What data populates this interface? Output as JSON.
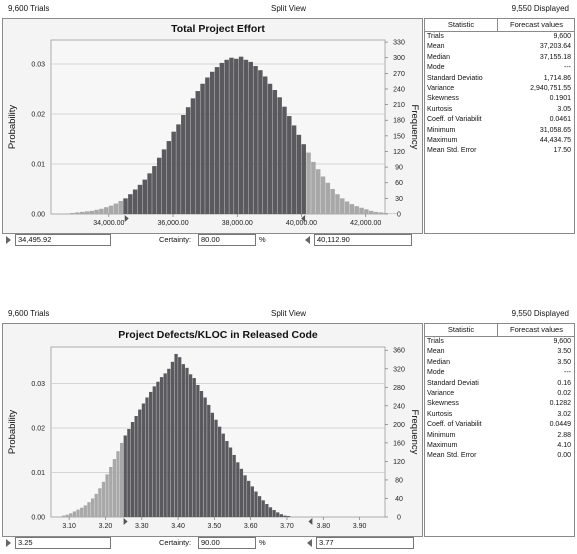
{
  "panels": [
    {
      "header": {
        "trials": "9,600 Trials",
        "view": "Split View",
        "displayed": "9,550 Displayed"
      },
      "chart_data": {
        "type": "bar",
        "title": "Total Project Effort",
        "ylabel": "Probability",
        "y2label": "Frequency",
        "x_range": [
          32200,
          42600
        ],
        "x_ticks": [
          34000,
          36000,
          38000,
          40000,
          42000
        ],
        "x_tick_labels": [
          "34,000.00",
          "36,000.00",
          "38,000.00",
          "40,000.00",
          "42,000.00"
        ],
        "y_ticks": [
          0,
          0.01,
          0.02,
          0.03
        ],
        "y_tick_labels": [
          "0.00",
          "0.01",
          "0.02",
          "0.03"
        ],
        "ylim": [
          0,
          0.0348
        ],
        "y2_ticks": [
          0,
          30,
          60,
          90,
          120,
          150,
          180,
          210,
          240,
          270,
          300,
          330
        ],
        "y2lim": [
          0,
          334
        ],
        "bin_start": 32500,
        "bin_width": 150,
        "lower_cut": 34495.92,
        "upper_cut": 40112.9,
        "frequencies": [
          1,
          1,
          2,
          3,
          4,
          5,
          6,
          8,
          10,
          13,
          16,
          20,
          25,
          30,
          38,
          47,
          56,
          66,
          78,
          92,
          108,
          124,
          140,
          158,
          172,
          190,
          205,
          222,
          236,
          250,
          262,
          273,
          282,
          290,
          296,
          300,
          298,
          302,
          296,
          292,
          284,
          276,
          264,
          250,
          238,
          224,
          206,
          188,
          170,
          152,
          134,
          118,
          100,
          86,
          72,
          60,
          48,
          38,
          30,
          24,
          19,
          15,
          12,
          9,
          6,
          4,
          3,
          2,
          1,
          1
        ]
      },
      "stats": {
        "col_statistic": "Statistic",
        "col_values": "Forecast values",
        "rows": [
          {
            "k": "Trials",
            "v": "9,600"
          },
          {
            "k": "Mean",
            "v": "37,203.64"
          },
          {
            "k": "Median",
            "v": "37,155.18"
          },
          {
            "k": "Mode",
            "v": "---"
          },
          {
            "k": "Standard Deviatio",
            "v": "1,714.86"
          },
          {
            "k": "Variance",
            "v": "2,940,751.55"
          },
          {
            "k": "Skewness",
            "v": "0.1901"
          },
          {
            "k": "Kurtosis",
            "v": "3.05"
          },
          {
            "k": "Coeff. of Variabilit",
            "v": "0.0461"
          },
          {
            "k": "Minimum",
            "v": "31,058.65"
          },
          {
            "k": "Maximum",
            "v": "44,434.75"
          },
          {
            "k": "Mean Std. Error",
            "v": "17.50"
          }
        ]
      },
      "controls": {
        "lower_value": "34,495.92",
        "certainty_label": "Certainty:",
        "certainty_value": "80.00",
        "percent": "%",
        "upper_value": "40,112.90"
      }
    },
    {
      "header": {
        "trials": "9,600 Trials",
        "view": "Split View",
        "displayed": "9,550 Displayed"
      },
      "chart_data": {
        "type": "bar",
        "title": "Project Defects/KLOC in Released Code",
        "ylabel": "Probability",
        "y2label": "Frequency",
        "x_range": [
          3.05,
          3.97
        ],
        "x_ticks": [
          3.1,
          3.2,
          3.3,
          3.4,
          3.5,
          3.6,
          3.7,
          3.8,
          3.9
        ],
        "x_tick_labels": [
          "3.10",
          "3.20",
          "3.30",
          "3.40",
          "3.50",
          "3.60",
          "3.70",
          "3.80",
          "3.90"
        ],
        "y_ticks": [
          0,
          0.01,
          0.02,
          0.03
        ],
        "y_tick_labels": [
          "0.00",
          "0.01",
          "0.02",
          "0.03"
        ],
        "ylim": [
          0,
          0.0382
        ],
        "y2_ticks": [
          0,
          40,
          80,
          120,
          160,
          200,
          240,
          280,
          320,
          360
        ],
        "y2lim": [
          0,
          367
        ],
        "bin_start": 3.08,
        "bin_width": 0.01,
        "lower_cut": 3.25,
        "upper_cut": 3.77,
        "frequencies": [
          3,
          5,
          8,
          12,
          16,
          20,
          25,
          32,
          40,
          50,
          62,
          76,
          92,
          108,
          125,
          142,
          160,
          176,
          190,
          205,
          218,
          232,
          245,
          258,
          270,
          282,
          292,
          302,
          310,
          320,
          335,
          352,
          345,
          330,
          322,
          308,
          300,
          285,
          272,
          258,
          242,
          225,
          210,
          195,
          180,
          164,
          150,
          134,
          118,
          104,
          90,
          78,
          66,
          55,
          45,
          36,
          28,
          21,
          15,
          10,
          6,
          3,
          2
        ]
      },
      "stats": {
        "col_statistic": "Statistic",
        "col_values": "Forecast values",
        "rows": [
          {
            "k": "Trials",
            "v": "9,600"
          },
          {
            "k": "Mean",
            "v": "3.50"
          },
          {
            "k": "Median",
            "v": "3.50"
          },
          {
            "k": "Mode",
            "v": "---"
          },
          {
            "k": "Standard Deviati",
            "v": "0.16"
          },
          {
            "k": "Variance",
            "v": "0.02"
          },
          {
            "k": "Skewness",
            "v": "0.1282"
          },
          {
            "k": "Kurtosis",
            "v": "3.02"
          },
          {
            "k": "Coeff. of Variabilit",
            "v": "0.0449"
          },
          {
            "k": "Minimum",
            "v": "2.88"
          },
          {
            "k": "Maximum",
            "v": "4.10"
          },
          {
            "k": "Mean Std. Error",
            "v": "0.00"
          }
        ]
      },
      "controls": {
        "lower_value": "3.25",
        "certainty_label": "Certainty:",
        "certainty_value": "90.00",
        "percent": "%",
        "upper_value": "3.77"
      }
    }
  ],
  "colors": {
    "inside_bar": "#5a5a5e",
    "outside_bar": "#a8a8a8",
    "plot_bg": "#f4f4f4",
    "grid": "#c9c9c9"
  }
}
